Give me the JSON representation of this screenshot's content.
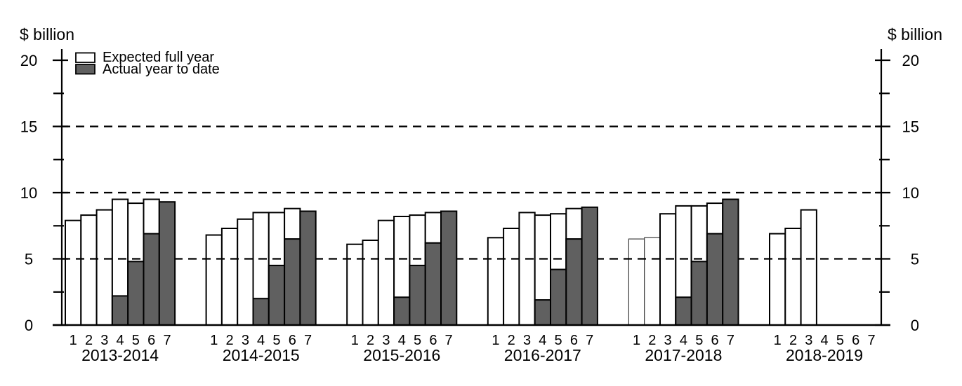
{
  "chart_data": {
    "type": "bar",
    "axis_title_left": "$ billion",
    "axis_title_right": "$ billion",
    "ylim": [
      0,
      21
    ],
    "yticks_major": [
      0,
      5,
      10,
      15,
      20
    ],
    "yticks_minor": [
      2.5,
      7.5,
      12.5,
      17.5
    ],
    "dashed_gridlines_at": [
      5,
      10,
      15
    ],
    "grid": "horizontal dashed lines at 5, 10 and 15, drawn over white bars and behind grey bars",
    "legend_position": "top-left",
    "bar_positions": [
      "1",
      "2",
      "3",
      "4",
      "5",
      "6",
      "7"
    ],
    "legend": [
      {
        "label": "Expected full year",
        "fill": "#ffffff"
      },
      {
        "label": "Actual year to date",
        "fill": "#606060"
      }
    ],
    "colors": {
      "expected_fill": "#ffffff",
      "actual_fill": "#606060",
      "outline": "#000000",
      "light_outline": "#3c3c3c"
    },
    "groups": [
      {
        "label": "2013-2014",
        "expected_full_year": [
          7.9,
          8.3,
          8.7,
          9.5,
          9.2,
          9.5,
          null
        ],
        "actual_year_to_date": [
          null,
          null,
          null,
          2.2,
          4.8,
          6.9,
          9.3
        ],
        "light_outline_positions": []
      },
      {
        "label": "2014-2015",
        "expected_full_year": [
          6.8,
          7.3,
          8.0,
          8.5,
          8.5,
          8.8,
          null
        ],
        "actual_year_to_date": [
          null,
          null,
          null,
          2.0,
          4.5,
          6.5,
          8.6
        ],
        "light_outline_positions": []
      },
      {
        "label": "2015-2016",
        "expected_full_year": [
          6.1,
          6.4,
          7.9,
          8.2,
          8.3,
          8.5,
          null
        ],
        "actual_year_to_date": [
          null,
          null,
          null,
          2.1,
          4.5,
          6.2,
          8.6
        ],
        "light_outline_positions": []
      },
      {
        "label": "2016-2017",
        "expected_full_year": [
          6.6,
          7.3,
          8.5,
          8.3,
          8.4,
          8.8,
          null
        ],
        "actual_year_to_date": [
          null,
          null,
          null,
          1.9,
          4.2,
          6.5,
          8.9
        ],
        "light_outline_positions": []
      },
      {
        "label": "2017-2018",
        "expected_full_year": [
          6.5,
          6.6,
          8.4,
          9.0,
          9.0,
          9.2,
          null
        ],
        "actual_year_to_date": [
          null,
          null,
          null,
          2.1,
          4.8,
          6.9,
          9.5
        ],
        "light_outline_positions": [
          1,
          2
        ]
      },
      {
        "label": "2018-2019",
        "expected_full_year": [
          6.9,
          7.3,
          8.7,
          null,
          null,
          null,
          null
        ],
        "actual_year_to_date": [
          null,
          null,
          null,
          null,
          null,
          null,
          null
        ],
        "light_outline_positions": []
      }
    ]
  }
}
